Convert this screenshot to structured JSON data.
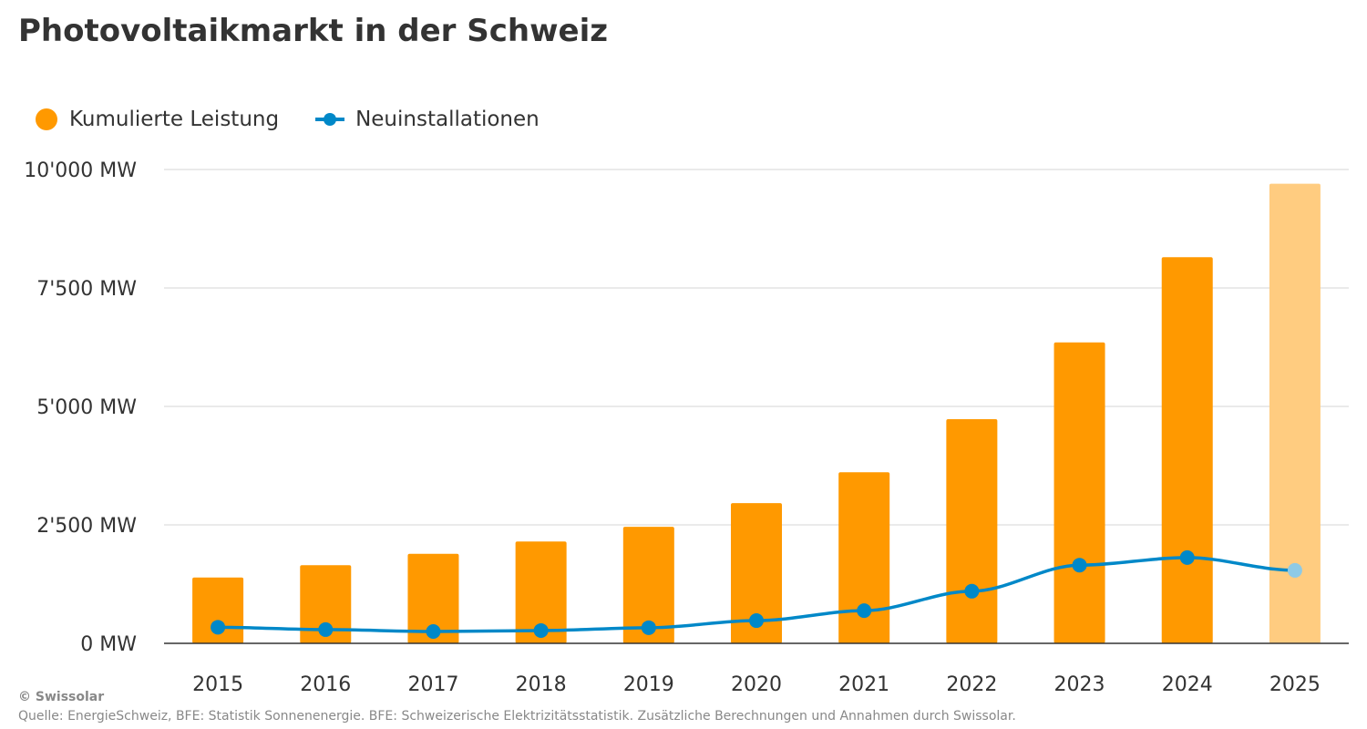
{
  "chart_data": {
    "type": "bar+line",
    "title": "Photovoltaikmarkt in der Schweiz",
    "categories": [
      "2015",
      "2016",
      "2017",
      "2018",
      "2019",
      "2020",
      "2021",
      "2022",
      "2023",
      "2024",
      "2025"
    ],
    "series": [
      {
        "name": "Kumulierte Leistung",
        "type": "bar",
        "color": "#ff9900",
        "highlight_color": "#ffcc80",
        "values": [
          1390,
          1650,
          1890,
          2150,
          2460,
          2960,
          3610,
          4730,
          6350,
          8150,
          9700
        ]
      },
      {
        "name": "Neuinstallationen",
        "type": "line",
        "color": "#0088c8",
        "highlight_color": "#8ecae6",
        "values": [
          340,
          290,
          250,
          270,
          330,
          480,
          690,
          1100,
          1650,
          1810,
          1540
        ]
      }
    ],
    "highlighted_category": "2025",
    "ylim": [
      0,
      10000
    ],
    "yticks": [
      0,
      2500,
      5000,
      7500,
      10000
    ],
    "ytick_labels": [
      "0 MW",
      "2'500 MW",
      "5'000 MW",
      "7'500 MW",
      "10'000 MW"
    ],
    "grid": true,
    "legend": "top-left",
    "credit": "© Swissolar",
    "source": "Quelle: EnergieSchweiz, BFE: Statistik Sonnenenergie. BFE: Schweizerische Elektrizitätsstatistik. Zusätzliche Berechnungen und Annahmen durch Swissolar."
  }
}
